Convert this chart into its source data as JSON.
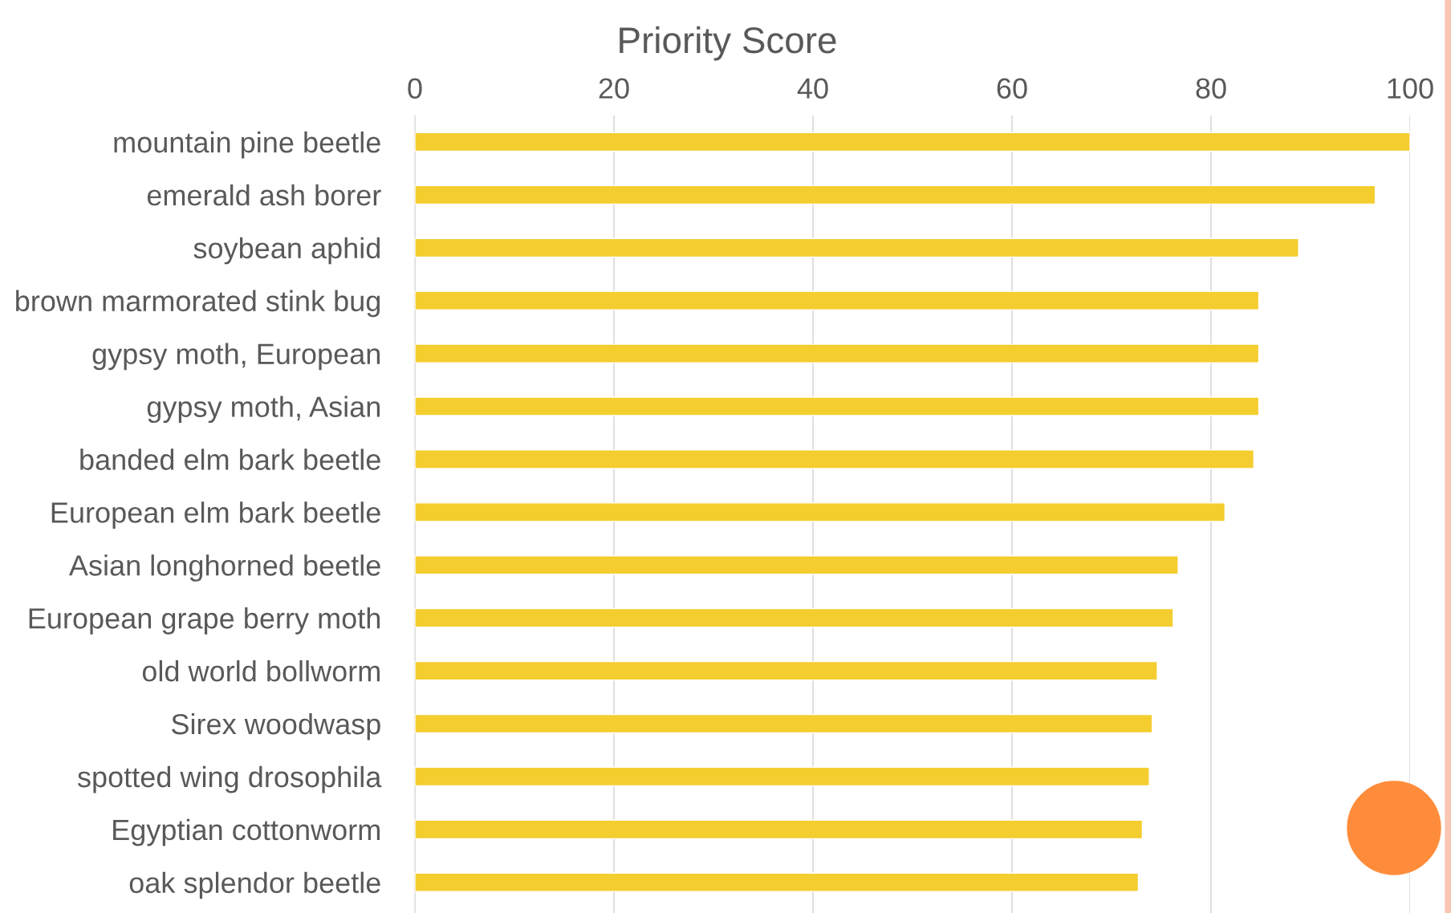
{
  "chart_data": {
    "type": "bar",
    "orientation": "horizontal",
    "xlabel": "Priority Score",
    "categories": [
      "mountain pine beetle",
      "emerald ash borer",
      "soybean aphid",
      "brown marmorated stink bug",
      "gypsy moth, European",
      "gypsy moth, Asian",
      "banded elm bark beetle",
      "European elm bark beetle",
      "Asian longhorned beetle",
      "European grape berry moth",
      "old world bollworm",
      "Sirex woodwasp",
      "spotted wing drosophila",
      "Egyptian cottonworm",
      "oak splendor beetle"
    ],
    "values": [
      100,
      96.5,
      88.8,
      84.8,
      84.8,
      84.8,
      84.3,
      81.4,
      76.7,
      76.2,
      74.6,
      74.1,
      73.8,
      73.1,
      72.7
    ],
    "color": "#f4cd2f",
    "xlim": [
      0,
      100
    ],
    "xticks": [
      0,
      20,
      40,
      60,
      80,
      100
    ],
    "grid": "x"
  }
}
